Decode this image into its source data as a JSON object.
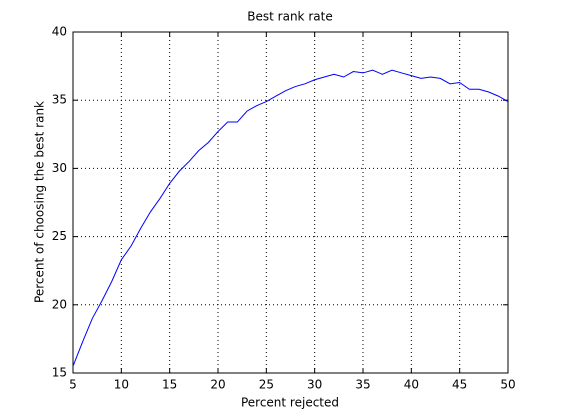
{
  "chart_data": {
    "type": "line",
    "title": "Best rank rate",
    "x_label": "Percent rejected",
    "y_label": "Percent of choosing the best rank",
    "x": [
      5,
      6,
      7,
      8,
      9,
      10,
      11,
      12,
      13,
      14,
      15,
      16,
      17,
      18,
      19,
      20,
      21,
      22,
      23,
      24,
      25,
      26,
      27,
      28,
      29,
      30,
      31,
      32,
      33,
      34,
      35,
      36,
      37,
      38,
      39,
      40,
      41,
      42,
      43,
      44,
      45,
      46,
      47,
      48,
      49,
      50
    ],
    "values": [
      15.5,
      17.3,
      19.0,
      20.3,
      21.7,
      23.3,
      24.3,
      25.6,
      26.8,
      27.8,
      28.9,
      29.8,
      30.5,
      31.3,
      31.9,
      32.7,
      33.4,
      33.4,
      34.2,
      34.6,
      34.9,
      35.3,
      35.7,
      36.0,
      36.2,
      36.5,
      36.7,
      36.9,
      36.7,
      37.1,
      37.0,
      37.2,
      36.9,
      37.2,
      37.0,
      36.8,
      36.6,
      36.7,
      36.6,
      36.2,
      36.3,
      35.8,
      35.8,
      35.6,
      35.3,
      34.9
    ],
    "color": "#0000ff",
    "xlim": [
      5,
      50
    ],
    "xticks": [
      5,
      10,
      15,
      20,
      25,
      30,
      35,
      40,
      45,
      50
    ],
    "ylim": [
      15,
      40
    ],
    "yticks": [
      15,
      20,
      25,
      30,
      35,
      40
    ],
    "grid": true
  }
}
